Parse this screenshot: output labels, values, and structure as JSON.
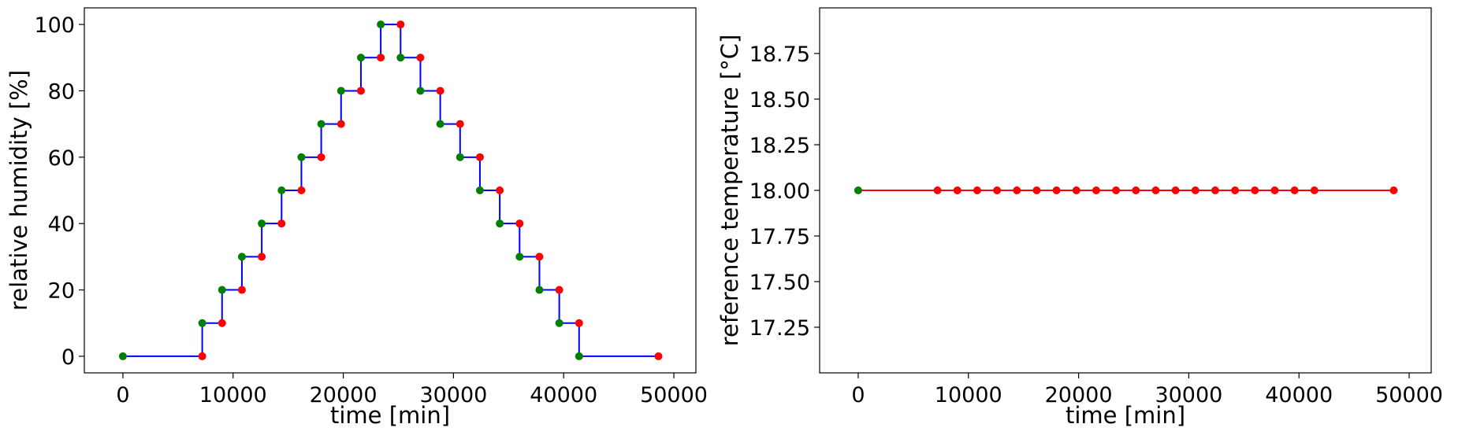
{
  "chart_data": [
    {
      "type": "line",
      "xlabel": "time [min]",
      "ylabel": "relative humidity [%]",
      "xlim": [
        -3500,
        52000
      ],
      "ylim": [
        -5,
        105
      ],
      "xticks": [
        "0",
        "10000",
        "20000",
        "30000",
        "40000",
        "50000"
      ],
      "xtick_values": [
        0,
        10000,
        20000,
        30000,
        40000,
        50000
      ],
      "yticks": [
        "0",
        "20",
        "40",
        "60",
        "80",
        "100"
      ],
      "ytick_values": [
        0,
        20,
        40,
        60,
        80,
        100
      ],
      "grid": false,
      "series": [
        {
          "style": "step",
          "color": "#0000ff",
          "x": [
            0,
            7200,
            7200,
            9000,
            9000,
            10800,
            10800,
            12600,
            12600,
            14400,
            14400,
            16200,
            16200,
            18000,
            18000,
            19800,
            19800,
            21600,
            21600,
            23400,
            23400,
            25200,
            25200,
            27000,
            27000,
            28800,
            28800,
            30600,
            30600,
            32400,
            32400,
            34200,
            34200,
            36000,
            36000,
            37800,
            37800,
            39600,
            39600,
            41400,
            41400,
            48600
          ],
          "y": [
            0,
            0,
            10,
            10,
            20,
            20,
            30,
            30,
            40,
            40,
            50,
            50,
            60,
            60,
            70,
            70,
            80,
            80,
            90,
            90,
            100,
            100,
            90,
            90,
            80,
            80,
            70,
            70,
            60,
            60,
            50,
            50,
            40,
            40,
            30,
            30,
            20,
            20,
            10,
            10,
            0,
            0
          ]
        },
        {
          "style": "markers",
          "color": "#008000",
          "x": [
            0,
            7200,
            9000,
            10800,
            12600,
            14400,
            16200,
            18000,
            19800,
            21600,
            23400,
            25200,
            27000,
            28800,
            30600,
            32400,
            34200,
            36000,
            37800,
            39600,
            41400
          ],
          "y": [
            0,
            10,
            20,
            30,
            40,
            50,
            60,
            70,
            80,
            90,
            100,
            90,
            80,
            70,
            60,
            50,
            40,
            30,
            20,
            10,
            0
          ]
        },
        {
          "style": "markers",
          "color": "#ff0000",
          "x": [
            7200,
            9000,
            10800,
            12600,
            14400,
            16200,
            18000,
            19800,
            21600,
            23400,
            25200,
            27000,
            28800,
            30600,
            32400,
            34200,
            36000,
            37800,
            39600,
            41400,
            48600
          ],
          "y": [
            0,
            10,
            20,
            30,
            40,
            50,
            60,
            70,
            80,
            90,
            100,
            90,
            80,
            70,
            60,
            50,
            40,
            30,
            20,
            10,
            0
          ]
        }
      ]
    },
    {
      "type": "line",
      "xlabel": "time [min]",
      "ylabel": "reference temperature [°C]",
      "xlim": [
        -3500,
        52000
      ],
      "ylim": [
        17.0,
        19.0
      ],
      "xticks": [
        "0",
        "10000",
        "20000",
        "30000",
        "40000",
        "50000"
      ],
      "xtick_values": [
        0,
        10000,
        20000,
        30000,
        40000,
        50000
      ],
      "yticks": [
        "17.25",
        "17.50",
        "17.75",
        "18.00",
        "18.25",
        "18.50",
        "18.75"
      ],
      "ytick_values": [
        17.25,
        17.5,
        17.75,
        18.0,
        18.25,
        18.5,
        18.75
      ],
      "grid": false,
      "series": [
        {
          "style": "line",
          "color": "#ff0000",
          "x": [
            0,
            48600
          ],
          "y": [
            18.0,
            18.0
          ]
        },
        {
          "style": "markers",
          "color": "#008000",
          "x": [
            0
          ],
          "y": [
            18.0
          ]
        },
        {
          "style": "markers",
          "color": "#ff0000",
          "x": [
            7200,
            9000,
            10800,
            12600,
            14400,
            16200,
            18000,
            19800,
            21600,
            23400,
            25200,
            27000,
            28800,
            30600,
            32400,
            34200,
            36000,
            37800,
            39600,
            41400,
            48600
          ],
          "y": [
            18.0,
            18.0,
            18.0,
            18.0,
            18.0,
            18.0,
            18.0,
            18.0,
            18.0,
            18.0,
            18.0,
            18.0,
            18.0,
            18.0,
            18.0,
            18.0,
            18.0,
            18.0,
            18.0,
            18.0,
            18.0
          ]
        }
      ]
    }
  ]
}
